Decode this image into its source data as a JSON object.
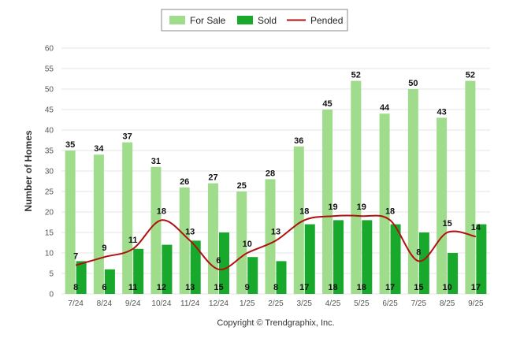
{
  "chart_data": {
    "type": "bar",
    "categories": [
      "7/24",
      "8/24",
      "9/24",
      "10/24",
      "11/24",
      "12/24",
      "1/25",
      "2/25",
      "3/25",
      "4/25",
      "5/25",
      "6/25",
      "7/25",
      "8/25",
      "9/25"
    ],
    "series": [
      {
        "name": "For Sale",
        "kind": "bar",
        "color": "#9fdd8c",
        "values": [
          35,
          34,
          37,
          31,
          26,
          27,
          25,
          28,
          36,
          45,
          52,
          44,
          50,
          43,
          52
        ]
      },
      {
        "name": "Sold",
        "kind": "bar",
        "color": "#17a82c",
        "values": [
          8,
          6,
          11,
          12,
          13,
          15,
          9,
          8,
          17,
          18,
          18,
          17,
          15,
          10,
          17
        ]
      },
      {
        "name": "Pended",
        "kind": "line",
        "color": "#b01010",
        "values": [
          7,
          9,
          11,
          18,
          13,
          6,
          10,
          13,
          18,
          19,
          19,
          18,
          8,
          15,
          14
        ]
      }
    ],
    "ylabel": "Number of Homes",
    "xlabel": "",
    "ylim": [
      0,
      60
    ],
    "yticks": [
      0,
      5,
      10,
      15,
      20,
      25,
      30,
      35,
      40,
      45,
      50,
      55,
      60
    ],
    "grid": true,
    "legend": "top-center",
    "footer": "Copyright © Trendgraphix, Inc."
  }
}
